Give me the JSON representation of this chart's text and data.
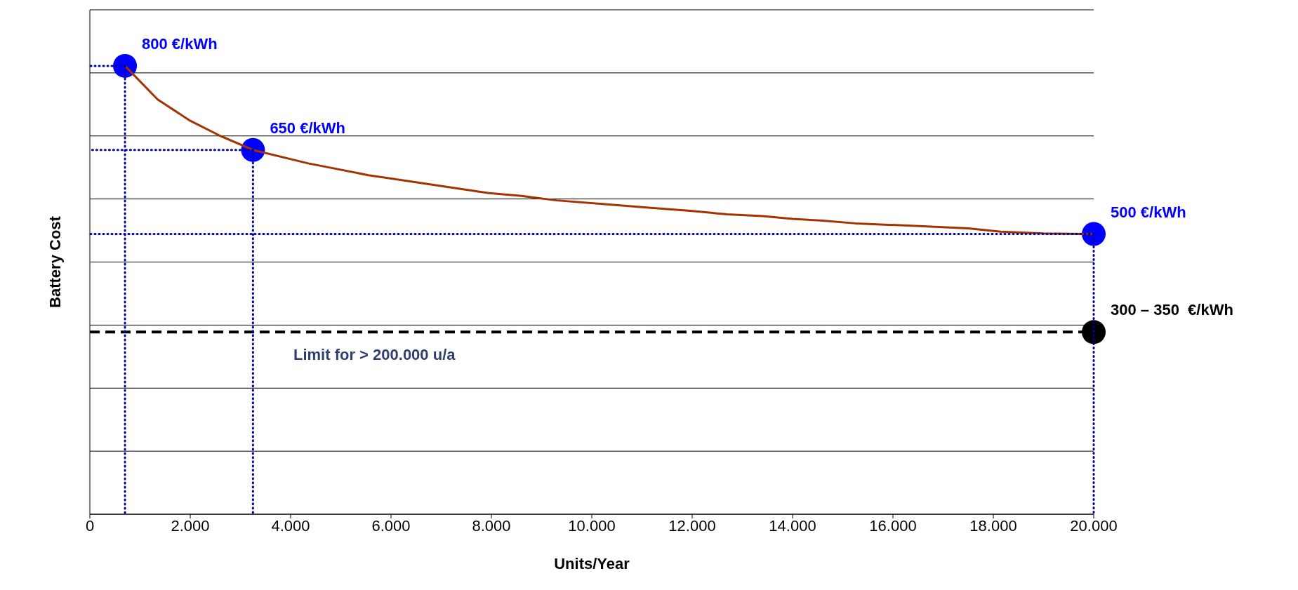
{
  "chart_data": {
    "type": "line",
    "xlabel": "Units/Year",
    "ylabel": "Battery Cost",
    "xlim": [
      0,
      20000
    ],
    "xticks": [
      0,
      {
        "value": 2000,
        "label": "2.000"
      },
      {
        "value": 4000,
        "label": "4.000"
      },
      {
        "value": 6000,
        "label": "6.000"
      },
      {
        "value": 8000,
        "label": "8.000"
      },
      {
        "value": 10000,
        "label": "10.000"
      },
      {
        "value": 12000,
        "label": "12.000"
      },
      {
        "value": 14000,
        "label": "14.000"
      },
      {
        "value": 16000,
        "label": "16.000"
      },
      {
        "value": 18000,
        "label": "18.000"
      },
      {
        "value": 20000,
        "label": "20.000"
      }
    ],
    "ylim": [
      0,
      900
    ],
    "yticks": [
      {
        "value": 0,
        "label": null
      },
      {
        "value": 112.5,
        "label": null
      },
      {
        "value": 225,
        "label": null
      },
      {
        "value": 337.5,
        "label": null
      },
      {
        "value": 450,
        "label": null
      },
      {
        "value": 562.5,
        "label": null
      },
      {
        "value": 675,
        "label": null
      },
      {
        "value": 787.5,
        "label": null
      },
      {
        "value": 900,
        "label": null
      }
    ],
    "tick_labels": "x",
    "grid": "y",
    "series": [
      {
        "color": "#a33300",
        "line_style": "solid",
        "marker": "none",
        "x": [
          700,
          1350,
          2000,
          2600,
          3250,
          4350,
          5550,
          6750,
          7950,
          8600,
          9300,
          10300,
          11000,
          12000,
          12700,
          13400,
          14000,
          14600,
          15250,
          16300,
          17500,
          18150,
          19000,
          20000
        ],
        "values": [
          800,
          740,
          702,
          675,
          650,
          626,
          605,
          589,
          573,
          568,
          560,
          553,
          548,
          541,
          535,
          532,
          527,
          524,
          519,
          515,
          510,
          504,
          501,
          500
        ]
      },
      {
        "color": "#000099",
        "line_style": "dotted",
        "marker": "none",
        "x": [
          700,
          0
        ],
        "values": [
          800,
          800
        ]
      },
      {
        "color": "#000099",
        "line_style": "dotted",
        "marker": "none",
        "x": [
          700,
          700
        ],
        "values": [
          800,
          0
        ]
      },
      {
        "color": "#000099",
        "line_style": "dotted",
        "marker": "none",
        "x": [
          3250,
          0
        ],
        "values": [
          650,
          650
        ]
      },
      {
        "color": "#000099",
        "line_style": "dotted",
        "marker": "none",
        "x": [
          3250,
          3250
        ],
        "values": [
          650,
          0
        ]
      },
      {
        "color": "#000099",
        "line_style": "dotted",
        "marker": "none",
        "x": [
          20000,
          0
        ],
        "values": [
          500,
          500
        ]
      },
      {
        "color": "#000099",
        "line_style": "dotted",
        "marker": "none",
        "x": [
          20000,
          20000
        ],
        "values": [
          500,
          0
        ]
      },
      {
        "type": "scatter",
        "color": "#0000ff",
        "marker": "circle",
        "x": [
          700,
          3250,
          20000
        ],
        "values": [
          800,
          650,
          500
        ],
        "value_labels": [
          "800 €/kWh",
          "650 €/kWh",
          "500 €/kWh"
        ]
      },
      {
        "type": "scatter",
        "color": "#000000",
        "marker": "circle",
        "x": [
          20000
        ],
        "values": [
          325
        ],
        "value_labels": [
          "300 – 350  €/kWh"
        ]
      }
    ],
    "ref_lines": [
      {
        "axis": "y",
        "value": 325,
        "label": "Limit for > 200.000 u/a",
        "color": "#000000",
        "line_style": "dashed"
      }
    ]
  }
}
